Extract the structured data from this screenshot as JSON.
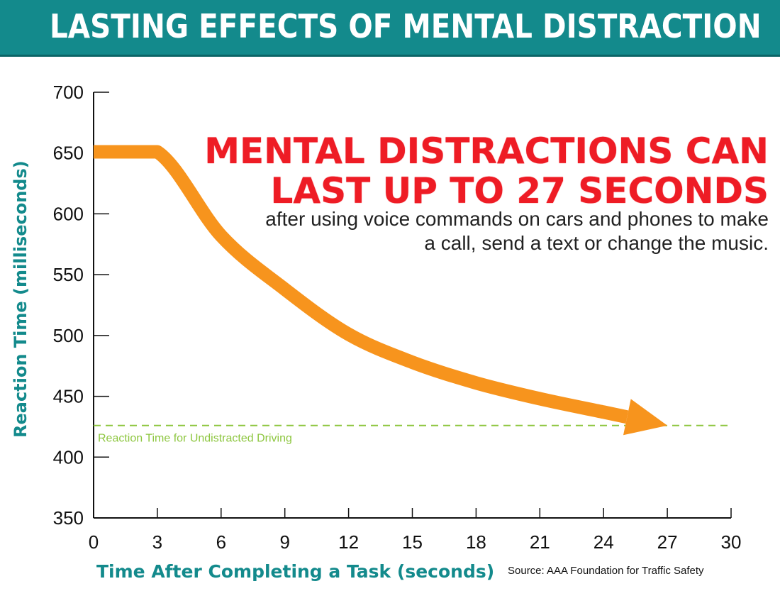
{
  "header": {
    "title": "LASTING EFFECTS OF MENTAL DISTRACTION"
  },
  "colors": {
    "banner": "#138a8c",
    "line": "#f7941d",
    "baseline": "#8dc63f",
    "headline": "#ee1c25",
    "axis_title": "#138a8c"
  },
  "chart_data": {
    "type": "line",
    "title": "",
    "xlabel": "Time After Completing a Task (seconds)",
    "ylabel": "Reaction Time (milliseconds)",
    "xlim": [
      0,
      30
    ],
    "ylim": [
      350,
      700
    ],
    "x_ticks": [
      0,
      3,
      6,
      9,
      12,
      15,
      18,
      21,
      24,
      27,
      30
    ],
    "y_ticks": [
      350,
      400,
      450,
      500,
      550,
      600,
      650,
      700
    ],
    "grid": false,
    "series": [
      {
        "x": [
          0,
          3,
          6,
          9,
          12,
          15,
          18,
          21,
          24,
          27
        ],
        "y": [
          651,
          651,
          582,
          538,
          501,
          478,
          461,
          448,
          437,
          426
        ],
        "color": "#f7941d",
        "arrow_end": true
      }
    ],
    "reference_line": {
      "y": 426,
      "label": "Reaction Time for Undistracted Driving",
      "color": "#8dc63f",
      "style": "dashed"
    },
    "annotation": {
      "headline_lines": [
        "MENTAL DISTRACTIONS CAN",
        "LAST UP TO 27 SECONDS"
      ],
      "subtext": "after using voice commands on cars and phones to make a call, send a text or change the music."
    },
    "source": "Source: AAA Foundation for Traffic Safety"
  }
}
